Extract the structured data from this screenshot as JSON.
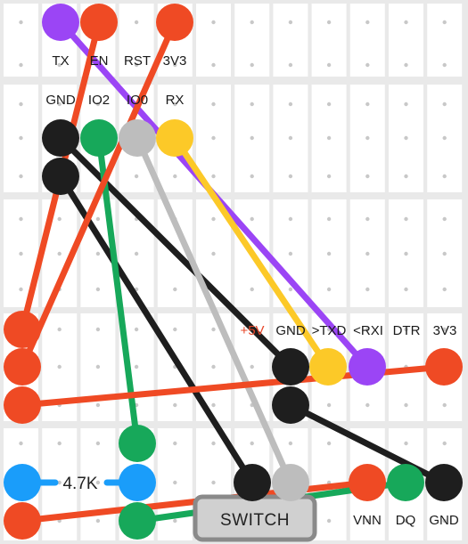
{
  "colors": {
    "breadboard_bg": "#e9e9e9",
    "cell": "#ffffff",
    "hole": "#c8c8c8",
    "purple": "#9b45f5",
    "red": "#ef4a24",
    "black": "#1e1e1e",
    "green": "#17a85a",
    "gray": "#bdbdbd",
    "yellow": "#fcc928",
    "blue": "#1a9dfa",
    "switch_body": "#d0d0d0",
    "switch_border": "#8a8a8a"
  },
  "labels": {
    "tx": "TX",
    "en": "EN",
    "rst": "RST",
    "v3v3_top": "3V3",
    "gnd_mid": "GND",
    "io2": "IO2",
    "io0": "IO0",
    "rx": "RX",
    "plus5v": "+5V",
    "gnd_usb": "GND",
    "txd": ">TXD",
    "rxi": "<RXI",
    "dtr": "DTR",
    "v3v3_usb": "3V3",
    "vnn": "VNN",
    "dq": "DQ",
    "gnd_sensor": "GND"
  },
  "resistor": {
    "label": "4.7K"
  },
  "switch": {
    "label": "SWITCH"
  }
}
